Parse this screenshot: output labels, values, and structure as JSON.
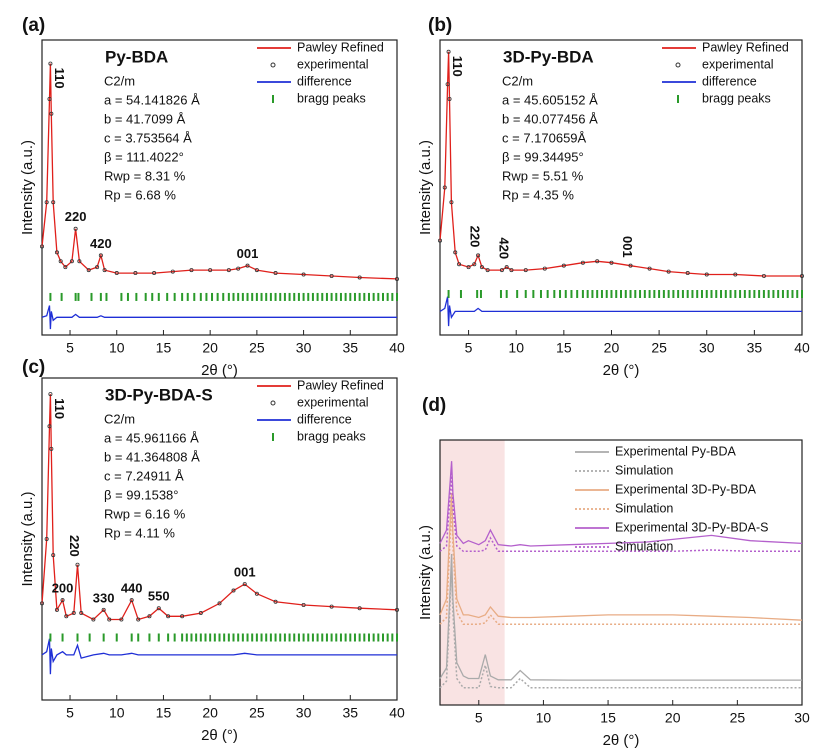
{
  "chart_data": [
    {
      "type": "line",
      "label": "(a)",
      "title": "Py-BDA",
      "params": [
        "C2/m",
        "a = 54.141826 Å",
        "b = 41.7099 Å",
        "c = 3.753564 Å",
        "β = 111.4022°",
        "Rwp = 8.31 %",
        "Rp = 6.68 %"
      ],
      "xlabel": "2θ (°)",
      "ylabel": "Intensity (a.u.)",
      "xlim": [
        2,
        40
      ],
      "xticks": [
        5,
        10,
        15,
        20,
        25,
        30,
        35,
        40
      ],
      "ylim": [
        0,
        100
      ],
      "legend": "upper right",
      "x": [
        2,
        2.5,
        2.8,
        2.9,
        3.0,
        3.2,
        3.6,
        4,
        4.5,
        5.2,
        5.6,
        6,
        7,
        7.9,
        8.3,
        8.7,
        10,
        12,
        14,
        16,
        18,
        20,
        22,
        23,
        24,
        25,
        27,
        30,
        33,
        36,
        40
      ],
      "series": [
        {
          "name": "Pawley Refined",
          "color": "#e0201b",
          "style": "line",
          "values": [
            30,
            45,
            80,
            92,
            75,
            45,
            28,
            25,
            23,
            25,
            36,
            25,
            22,
            23,
            27,
            22,
            21,
            21,
            21,
            21.5,
            22,
            22,
            22,
            22.5,
            23.5,
            22,
            21,
            20.5,
            20,
            19.5,
            19
          ]
        },
        {
          "name": "experimental",
          "color": "#333333",
          "style": "dots",
          "values": [
            30,
            45,
            80,
            92,
            75,
            45,
            28,
            25,
            23,
            25,
            36,
            25,
            22,
            23,
            27,
            22,
            21,
            21,
            21,
            21.5,
            22,
            22,
            22,
            22.5,
            23.5,
            22,
            21,
            20.5,
            20,
            19.5,
            19
          ]
        },
        {
          "name": "difference",
          "color": "#1f2fd6",
          "style": "line",
          "values": [
            6,
            6.5,
            10,
            2,
            8,
            5,
            6,
            6,
            6,
            6,
            7,
            6,
            6,
            6,
            6.5,
            6,
            6,
            6,
            6,
            6,
            6,
            6,
            6,
            6,
            6,
            6,
            6,
            6,
            6,
            6,
            6
          ]
        },
        {
          "name": "bragg peaks",
          "color": "#2a9a2a",
          "style": "ticks",
          "x": [
            2.9,
            4.1,
            5.6,
            5.9,
            7.3,
            8.3,
            8.9,
            10.5,
            11.2,
            12.1,
            13.1,
            13.8,
            14.5,
            15.4,
            16.2,
            17,
            17.6,
            18.3,
            19,
            19.6,
            20.2,
            20.8,
            21.4,
            22,
            22.5,
            23,
            23.5,
            24,
            24.5,
            25,
            25.5,
            26,
            26.5,
            27,
            27.5,
            28,
            28.5,
            29,
            29.5,
            30,
            30.5,
            31,
            31.5,
            32,
            32.5,
            33,
            33.5,
            34,
            34.5,
            35,
            35.5,
            36,
            36.5,
            37,
            37.5,
            38,
            38.5,
            39,
            39.5,
            40
          ]
        }
      ],
      "peak_labels": [
        {
          "text": "110",
          "x": 2.9,
          "rotate": true
        },
        {
          "text": "220",
          "x": 5.6
        },
        {
          "text": "420",
          "x": 8.3
        },
        {
          "text": "001",
          "x": 24
        }
      ]
    },
    {
      "type": "line",
      "label": "(b)",
      "title": "3D-Py-BDA",
      "params": [
        "C2/m",
        "a = 45.605152 Å",
        "b = 40.077456 Å",
        "c = 7.170659Å",
        "β = 99.34495°",
        "Rwp = 5.51 %",
        "Rp = 4.35 %"
      ],
      "xlabel": "2θ (°)",
      "ylabel": "Intensity (a.u.)",
      "xlim": [
        2,
        40
      ],
      "xticks": [
        5,
        10,
        15,
        20,
        25,
        30,
        35,
        40
      ],
      "ylim": [
        0,
        100
      ],
      "legend": "upper right",
      "x": [
        2,
        2.5,
        2.8,
        2.9,
        3.0,
        3.2,
        3.6,
        4,
        5,
        5.6,
        6,
        6.4,
        7,
        8.5,
        9,
        9.5,
        11,
        13,
        15,
        17,
        18.5,
        20,
        22,
        24,
        26,
        28,
        30,
        33,
        36,
        40
      ],
      "series": [
        {
          "name": "Pawley Refined",
          "color": "#e0201b",
          "style": "line",
          "values": [
            32,
            50,
            85,
            96,
            80,
            45,
            28,
            24,
            23,
            24,
            27,
            23,
            22,
            22,
            23,
            22,
            22,
            22.5,
            23.5,
            24.5,
            25,
            24.5,
            23.5,
            22.5,
            21.5,
            21,
            20.5,
            20.5,
            20,
            20
          ]
        },
        {
          "name": "experimental",
          "color": "#333333",
          "style": "dots",
          "values": [
            32,
            50,
            85,
            96,
            80,
            45,
            28,
            24,
            23,
            24,
            27,
            23,
            22,
            22,
            23,
            22,
            22,
            22.5,
            23.5,
            24.5,
            25,
            24.5,
            23.5,
            22.5,
            21.5,
            21,
            20.5,
            20.5,
            20,
            20
          ]
        },
        {
          "name": "difference",
          "color": "#1f2fd6",
          "style": "line",
          "values": [
            8,
            9,
            13,
            3,
            10,
            6,
            8,
            8,
            8,
            8,
            9,
            8,
            8,
            8,
            8,
            8,
            8,
            8,
            8,
            8,
            8,
            8,
            8,
            8,
            8,
            8,
            8,
            8,
            8,
            8
          ]
        },
        {
          "name": "bragg peaks",
          "color": "#2a9a2a",
          "style": "ticks",
          "x": [
            2.9,
            4.2,
            5.9,
            6.3,
            8.4,
            9,
            10.1,
            11,
            11.8,
            12.6,
            13.3,
            14,
            14.6,
            15.2,
            15.8,
            16.4,
            17,
            17.5,
            18,
            18.5,
            19,
            19.5,
            20,
            20.5,
            21,
            21.5,
            22,
            22.5,
            23,
            23.5,
            24,
            24.5,
            25,
            25.5,
            26,
            26.5,
            27,
            27.5,
            28,
            28.5,
            29,
            29.5,
            30,
            30.5,
            31,
            31.5,
            32,
            32.5,
            33,
            33.5,
            34,
            34.5,
            35,
            35.5,
            36,
            36.5,
            37,
            37.5,
            38,
            38.5,
            39,
            39.5,
            40
          ]
        }
      ],
      "peak_labels": [
        {
          "text": "110",
          "x": 2.9,
          "rotate": true
        },
        {
          "text": "220",
          "x": 6,
          "rotate": true
        },
        {
          "text": "420",
          "x": 9,
          "rotate": true
        },
        {
          "text": "001",
          "x": 22,
          "rotate": true
        }
      ]
    },
    {
      "type": "line",
      "label": "(c)",
      "title": "3D-Py-BDA-S",
      "params": [
        "C2/m",
        "a = 45.961166 Å",
        "b = 41.364808 Å",
        "c = 7.24911 Å",
        "β = 99.1538°",
        "Rwp = 6.16 %",
        "Rp = 4.11 %"
      ],
      "xlabel": "2θ (°)",
      "ylabel": "Intensity (a.u.)",
      "xlim": [
        2,
        40
      ],
      "xticks": [
        5,
        10,
        15,
        20,
        25,
        30,
        35,
        40
      ],
      "ylim": [
        0,
        100
      ],
      "legend": "upper right",
      "x": [
        2,
        2.5,
        2.8,
        2.9,
        3.0,
        3.2,
        3.6,
        4.2,
        4.6,
        5.4,
        5.8,
        6.2,
        7.5,
        8.6,
        9.2,
        10.5,
        11.6,
        12.3,
        13.5,
        14.5,
        15.5,
        17,
        19,
        21,
        22.5,
        23.7,
        25,
        27,
        30,
        33,
        36,
        40
      ],
      "series": [
        {
          "name": "Pawley Refined",
          "color": "#e0201b",
          "style": "line",
          "values": [
            30,
            50,
            85,
            95,
            78,
            45,
            28,
            31,
            26,
            27,
            42,
            27,
            25,
            28,
            25,
            25,
            31,
            25,
            26,
            28.5,
            26,
            26,
            27,
            30,
            34,
            36,
            33,
            30.5,
            29.5,
            29,
            28.5,
            28
          ]
        },
        {
          "name": "experimental",
          "color": "#333333",
          "style": "dots",
          "values": [
            30,
            50,
            85,
            95,
            78,
            45,
            28,
            31,
            26,
            27,
            42,
            27,
            25,
            28,
            25,
            25,
            31,
            25,
            26,
            28.5,
            26,
            26,
            27,
            30,
            34,
            36,
            33,
            30.5,
            29.5,
            29,
            28.5,
            28
          ]
        },
        {
          "name": "difference",
          "color": "#1f2fd6",
          "style": "line",
          "values": [
            14,
            15,
            19,
            8,
            16,
            12,
            14,
            15,
            14,
            14,
            17,
            13,
            14,
            14.5,
            14,
            14,
            14.5,
            14,
            14,
            14,
            14,
            14,
            14,
            14,
            14,
            14.5,
            14,
            14,
            14,
            14,
            14,
            14
          ]
        },
        {
          "name": "bragg peaks",
          "color": "#2a9a2a",
          "style": "ticks",
          "x": [
            2.9,
            4.2,
            5.8,
            7.1,
            8.6,
            10,
            11.6,
            12.3,
            13.5,
            14.5,
            15.5,
            16.2,
            17,
            17.5,
            18,
            18.5,
            19,
            19.5,
            20,
            20.5,
            21,
            21.5,
            22,
            22.5,
            23,
            23.5,
            24,
            24.5,
            25,
            25.5,
            26,
            26.5,
            27,
            27.5,
            28,
            28.5,
            29,
            29.5,
            30,
            30.5,
            31,
            31.5,
            32,
            32.5,
            33,
            33.5,
            34,
            34.5,
            35,
            35.5,
            36,
            36.5,
            37,
            37.5,
            38,
            38.5,
            39,
            39.5,
            40
          ]
        }
      ],
      "peak_labels": [
        {
          "text": "110",
          "x": 2.9,
          "rotate": true
        },
        {
          "text": "200",
          "x": 4.2
        },
        {
          "text": "220",
          "x": 5.8,
          "rotate": true
        },
        {
          "text": "330",
          "x": 8.6
        },
        {
          "text": "440",
          "x": 11.6
        },
        {
          "text": "550",
          "x": 14.5
        },
        {
          "text": "001",
          "x": 23.7
        }
      ]
    },
    {
      "type": "line",
      "label": "(d)",
      "xlabel": "2θ (°)",
      "ylabel": "Intensity (a.u.)",
      "xlim": [
        2,
        30
      ],
      "xticks": [
        5,
        10,
        15,
        20,
        25,
        30
      ],
      "ylim": [
        0,
        100
      ],
      "legend": "upper right",
      "highlight": [
        2,
        7
      ],
      "highlight_color": "#f9e3e3",
      "x": [
        2,
        2.5,
        2.8,
        2.9,
        3.0,
        3.3,
        3.8,
        4.2,
        5,
        5.5,
        5.9,
        6.5,
        7.5,
        8.2,
        9,
        12,
        15,
        18,
        20,
        23,
        26,
        30
      ],
      "series": [
        {
          "name": "Experimental Py-BDA",
          "color": "#aaaaaa",
          "style": "line",
          "values": [
            10,
            14,
            45,
            57,
            40,
            16,
            11,
            10,
            10,
            19,
            11,
            9.5,
            9.5,
            13,
            9.5,
            9.4,
            9.4,
            9.4,
            9.4,
            9.4,
            9.4,
            9.4
          ]
        },
        {
          "name": "Simulation",
          "color": "#aaaaaa",
          "style": "dashed",
          "values": [
            6.5,
            9,
            40,
            50,
            35,
            10,
            6.5,
            6.5,
            6.5,
            15,
            7,
            6.5,
            6.5,
            10,
            6.5,
            6.5,
            6.5,
            6.5,
            6.5,
            6.5,
            6.5,
            6.5
          ]
        },
        {
          "name": "Experimental 3D-Py-BDA",
          "color": "#e8ac85",
          "style": "line",
          "values": [
            34,
            40,
            70,
            80,
            65,
            40,
            34,
            34,
            33,
            34,
            37,
            33.5,
            33,
            33,
            33,
            33.5,
            34,
            34,
            34,
            33.5,
            33,
            32
          ]
        },
        {
          "name": "Simulation",
          "color": "#e8ac85",
          "style": "dashed",
          "values": [
            30.5,
            33,
            65,
            75,
            60,
            35,
            30.5,
            30.5,
            30.5,
            31,
            34,
            30.5,
            30.5,
            30.5,
            30.5,
            30.5,
            30.5,
            30.5,
            30.5,
            30.5,
            30.5,
            30.5
          ]
        },
        {
          "name": "Experimental 3D-Py-BDA-S",
          "color": "#b460cc",
          "style": "line",
          "values": [
            61,
            66,
            85,
            92,
            80,
            64,
            61,
            62,
            60.5,
            62,
            66,
            60.5,
            60,
            60.5,
            60,
            60.5,
            61,
            61.5,
            62.5,
            64,
            62,
            61
          ]
        },
        {
          "name": "Simulation",
          "color": "#b460cc",
          "style": "dashed",
          "values": [
            58,
            60,
            80,
            88,
            75,
            60,
            58,
            58,
            58,
            58.5,
            63,
            58,
            58,
            58,
            58,
            58,
            58,
            58,
            58,
            58.5,
            58,
            58
          ]
        }
      ]
    }
  ]
}
